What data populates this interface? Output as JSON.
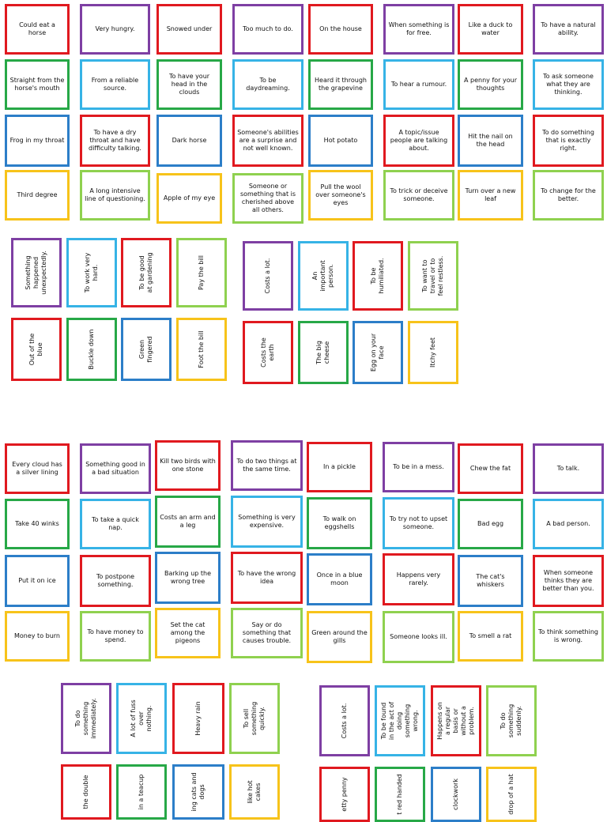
{
  "top_grid": [
    [
      "Could eat a horse",
      "Very hungry.",
      "Snowed under",
      "Too much to do.",
      "On the house",
      "When something is for free.",
      "Like a duck to water",
      "To have a natural ability."
    ],
    [
      "Straight from the horse's mouth",
      "From a reliable source.",
      "To have your head in the clouds",
      "To be daydreaming.",
      "Heard it through the grapevine",
      "To hear a rumour.",
      "A penny for your thoughts",
      "To ask someone what they are thinking."
    ],
    [
      "Frog in my throat",
      "To have a dry throat and have difficulty talking.",
      "Dark horse",
      "Someone's abilities are a surprise and not well known.",
      "Hot potato",
      "A topic/issue people are talking about.",
      "Hit the nail on the head",
      "To do something that is exactly right."
    ],
    [
      "Third degree",
      "A long intensive line of questioning.",
      "Apple of my eye",
      "Someone or something that is cherished above all others.",
      "Pull the wool over someone's eyes",
      "To trick or deceive someone.",
      "Turn over a new leaf",
      "To change for the better."
    ]
  ],
  "top_vertical": {
    "left_row1": [
      "Something happened unexpectedly.",
      "To work very hard.",
      "To be good at gardening",
      "Pay the bill"
    ],
    "left_row2": [
      "Out of the blue",
      "Buckle down",
      "Green fingered",
      "Foot the bill"
    ],
    "right_row1": [
      "Costs a lot.",
      "An important person.",
      "To be humiliated.",
      "To want to travel or to feel restless."
    ],
    "right_row2": [
      "Costs the earth",
      "The big cheese",
      "Egg on your face",
      "Itchy feet"
    ]
  },
  "bottom_grid": [
    [
      "Every cloud has a silver lining",
      "Something good in a bad situation",
      "Kill two birds with one stone",
      "To do two things at the same time.",
      "In a pickle",
      "To be in a mess.",
      "Chew the fat",
      "To talk."
    ],
    [
      "Take 40 winks",
      "To take a quick nap.",
      "Costs an arm and a leg",
      "Something is very expensive.",
      "To walk on eggshells",
      "To try not to upset someone.",
      "Bad egg",
      "A bad person."
    ],
    [
      "Put it on ice",
      "To postpone something.",
      "Barking up the wrong tree",
      "To have the wrong idea",
      "Once in a blue moon",
      "Happens very rarely.",
      "The cat's whiskers",
      "When someone thinks they are better than you."
    ],
    [
      "Money to burn",
      "To have money to spend.",
      "Set the cat among the pigeons",
      "Say or do something that causes trouble.",
      "Green around the gills",
      "Someone looks ill.",
      "To smell a rat",
      "To think something is wrong."
    ]
  ],
  "bottom_vertical": {
    "left_row1": [
      "To do something immediately.",
      "A lot of fuss over nothing.",
      "Heavy rain",
      "To sell something quickly."
    ],
    "left_row2": [
      "the double",
      "in a teacup",
      "ing cats and dogs",
      "like hot cakes"
    ],
    "right_row1": [
      "Costs a lot.",
      "To be found in the act of doing something wrong.",
      "Happens on a regular basis or without a problem.",
      "To do something suddenly."
    ],
    "right_row2": [
      "etty penny",
      "t red handed",
      "clockwork",
      "drop of a hat"
    ]
  }
}
